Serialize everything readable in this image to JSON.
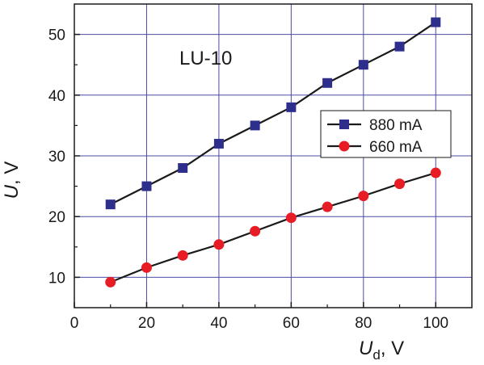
{
  "chart_data": {
    "type": "line",
    "annotation": "LU-10",
    "xlabel": {
      "main": "U",
      "sub": "d",
      "unit": ", V"
    },
    "ylabel": {
      "main": "U",
      "unit": ", V"
    },
    "xlim": [
      0,
      110
    ],
    "ylim": [
      5,
      55
    ],
    "xticks": [
      0,
      20,
      40,
      60,
      80,
      100
    ],
    "yticks": [
      10,
      20,
      30,
      40,
      50
    ],
    "grid": true,
    "grid_color": "#4b4ba6",
    "legend_position": "center-right",
    "x": [
      10,
      20,
      30,
      40,
      50,
      60,
      70,
      80,
      90,
      100
    ],
    "series": [
      {
        "name": "880 mA",
        "marker": "square",
        "color": "#2e2e8c",
        "values": [
          22,
          25,
          28,
          32,
          35,
          38,
          42,
          45,
          48,
          52
        ]
      },
      {
        "name": "660 mA",
        "marker": "circle",
        "color": "#e81c24",
        "values": [
          9.2,
          11.6,
          13.6,
          15.4,
          17.6,
          19.8,
          21.6,
          23.4,
          25.4,
          27.2
        ]
      }
    ]
  }
}
